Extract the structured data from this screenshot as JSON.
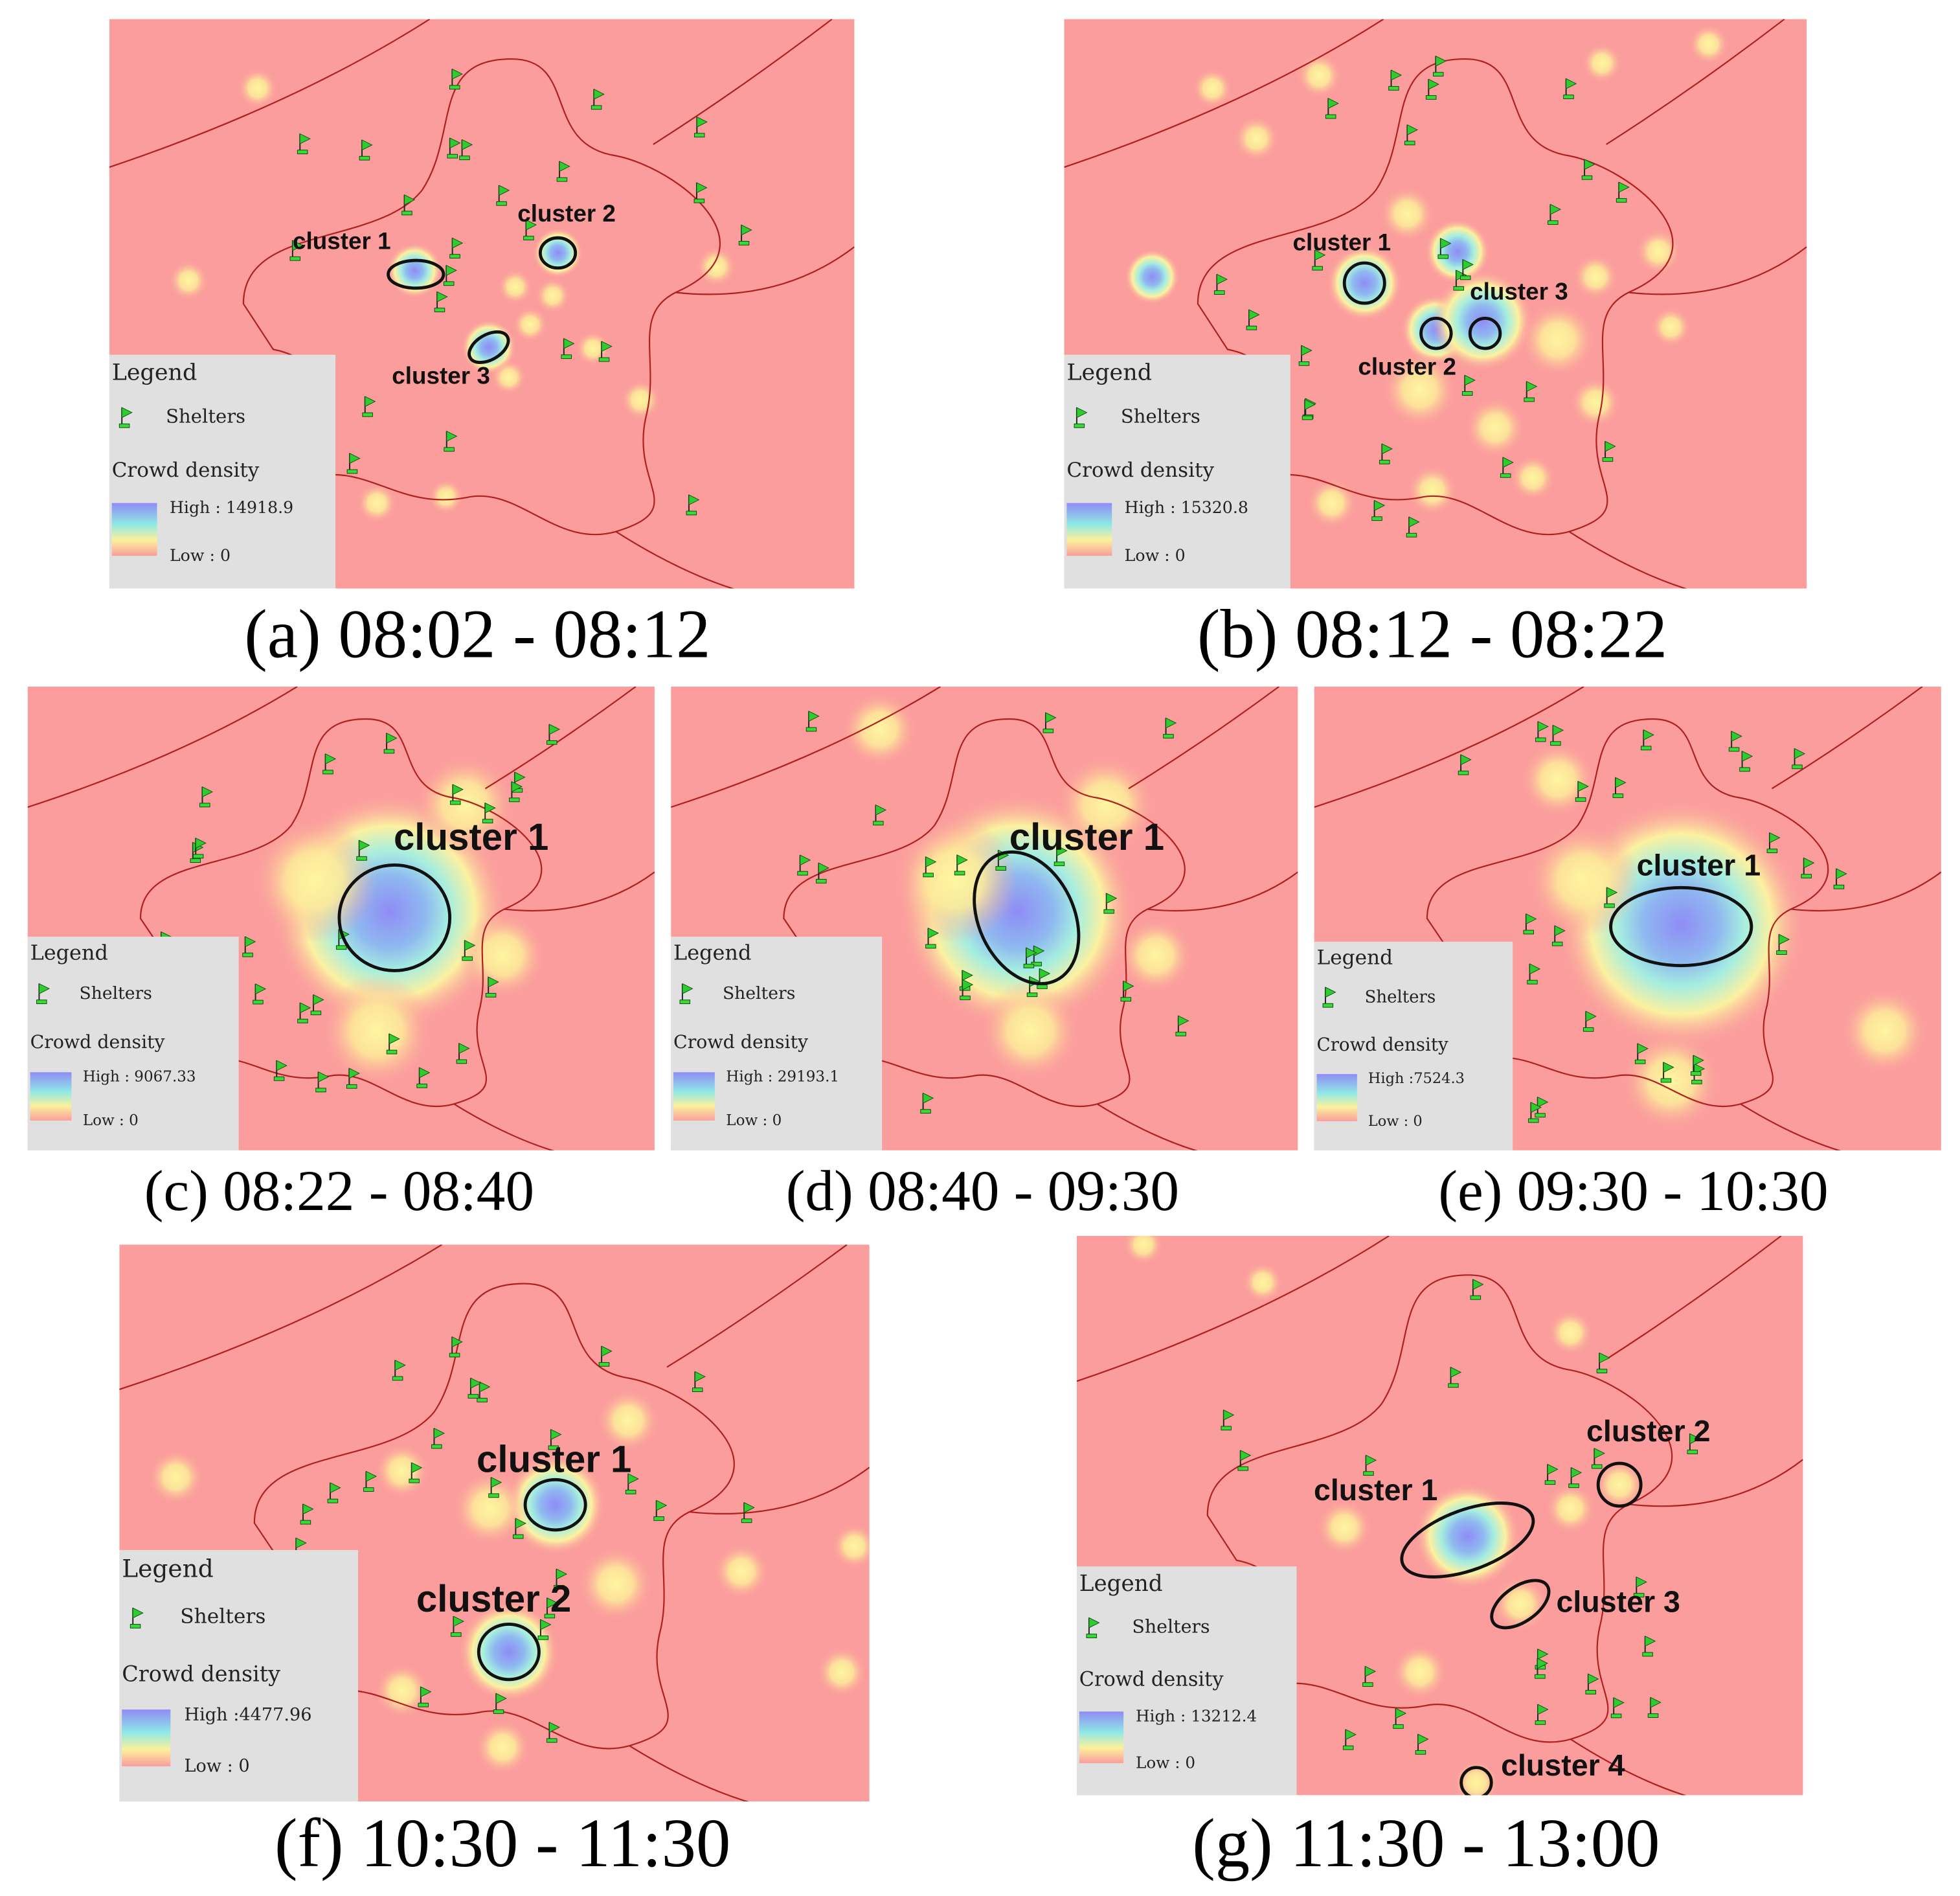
{
  "panels": [
    {
      "caption": "(a) 08:02 - 08:12",
      "legend": {
        "title": "Legend",
        "shelters": "Shelters",
        "density": "Crowd density",
        "high": "High : 14918.9",
        "low": "Low : 0"
      },
      "clusters": [
        "cluster 1",
        "cluster 2",
        "cluster 3"
      ]
    },
    {
      "caption": "(b) 08:12 - 08:22",
      "legend": {
        "title": "Legend",
        "shelters": "Shelters",
        "density": "Crowd density",
        "high": "High : 15320.8",
        "low": "Low : 0"
      },
      "clusters": [
        "cluster 1",
        "cluster 2",
        "cluster 3"
      ]
    },
    {
      "caption": "(c) 08:22 - 08:40",
      "legend": {
        "title": "Legend",
        "shelters": "Shelters",
        "density": "Crowd density",
        "high": "High : 9067.33",
        "low": "Low : 0"
      },
      "clusters": [
        "cluster 1"
      ]
    },
    {
      "caption": "(d) 08:40 - 09:30",
      "legend": {
        "title": "Legend",
        "shelters": "Shelters",
        "density": "Crowd density",
        "high": "High : 29193.1",
        "low": "Low : 0"
      },
      "clusters": [
        "cluster 1"
      ]
    },
    {
      "caption": "(e) 09:30 - 10:30",
      "legend": {
        "title": "Legend",
        "shelters": "Shelters",
        "density": "Crowd density",
        "high": "High :7524.3",
        "low": "Low : 0"
      },
      "clusters": [
        "cluster 1"
      ]
    },
    {
      "caption": "(f) 10:30 - 11:30",
      "legend": {
        "title": "Legend",
        "shelters": "Shelters",
        "density": "Crowd density",
        "high": "High :4477.96",
        "low": "Low : 0"
      },
      "clusters": [
        "cluster 1",
        "cluster 2"
      ]
    },
    {
      "caption": "(g) 11:30 - 13:00",
      "legend": {
        "title": "Legend",
        "shelters": "Shelters",
        "density": "Crowd density",
        "high": "High : 13212.4",
        "low": "Low : 0"
      },
      "clusters": [
        "cluster 1",
        "cluster 2",
        "cluster 3",
        "cluster 4"
      ]
    }
  ]
}
